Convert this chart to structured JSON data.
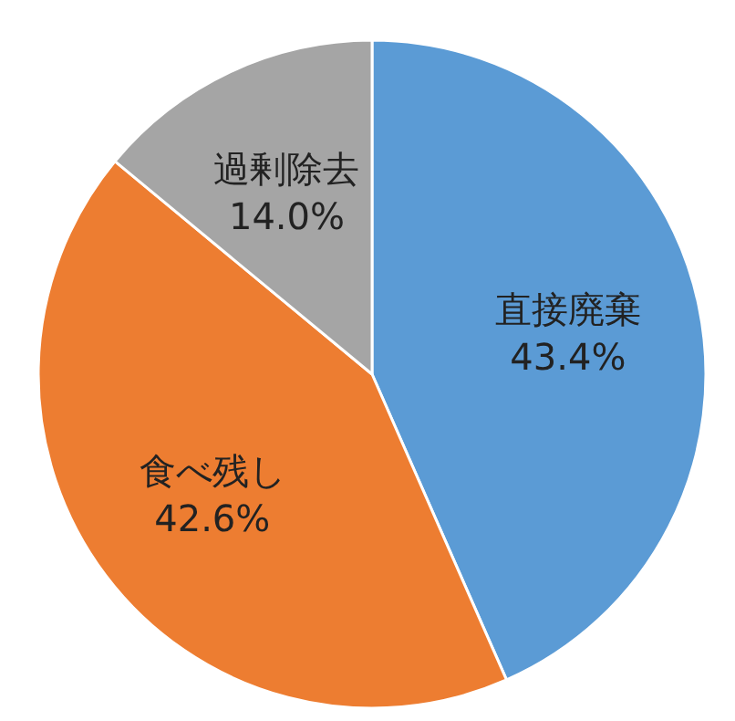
{
  "chart_data": {
    "type": "pie",
    "categories": [
      "直接廃棄",
      "食べ残し",
      "過剰除去"
    ],
    "values": [
      43.4,
      42.6,
      14.0
    ],
    "colors": [
      "#5b9bd5",
      "#ed7d31",
      "#a5a5a5"
    ],
    "value_labels": [
      "43.4%",
      "42.6%",
      "14.0%"
    ]
  }
}
